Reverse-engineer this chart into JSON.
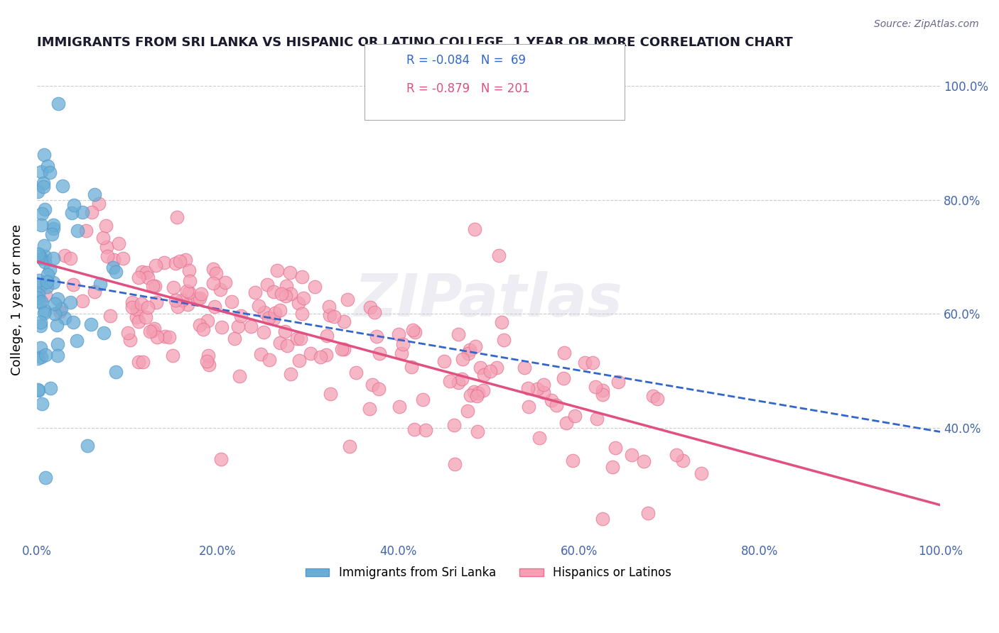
{
  "title": "IMMIGRANTS FROM SRI LANKA VS HISPANIC OR LATINO COLLEGE, 1 YEAR OR MORE CORRELATION CHART",
  "source": "Source: ZipAtlas.com",
  "ylabel": "College, 1 year or more",
  "xlabel": "",
  "xlim": [
    0.0,
    1.0
  ],
  "ylim": [
    0.2,
    1.05
  ],
  "xtick_labels": [
    "0.0%",
    "20.0%",
    "40.0%",
    "60.0%",
    "80.0%",
    "100.0%"
  ],
  "ytick_labels_right": [
    "40.0%",
    "60.0%",
    "80.0%",
    "100.0%"
  ],
  "legend_r_blue": "-0.084",
  "legend_n_blue": "69",
  "legend_r_pink": "-0.879",
  "legend_n_pink": "201",
  "legend_label_blue": "Immigrants from Sri Lanka",
  "legend_label_pink": "Hispanics or Latinos",
  "blue_color": "#6aaed6",
  "pink_color": "#f4a0b5",
  "blue_edge": "#5599cc",
  "pink_edge": "#e87090",
  "trend_blue_color": "#3366cc",
  "trend_pink_color": "#e05080",
  "watermark": "ZIPatlas",
  "blue_R": -0.084,
  "blue_N": 69,
  "pink_R": -0.879,
  "pink_N": 201,
  "random_seed_blue": 42,
  "random_seed_pink": 99,
  "title_color": "#1a1a2e",
  "source_color": "#666688",
  "axis_color": "#4466aa",
  "grid_color": "#cccccc",
  "grid_linestyle": "--"
}
